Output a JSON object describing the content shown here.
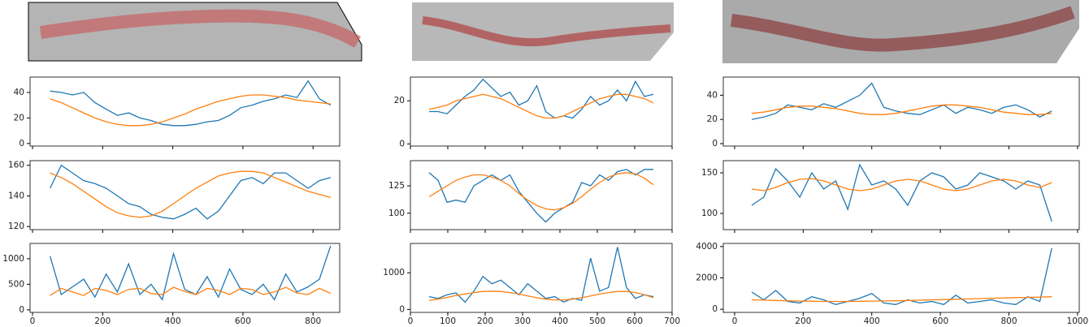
{
  "chart_data": [
    {
      "type": "line",
      "x": [
        50,
        82,
        114,
        146,
        178,
        210,
        242,
        274,
        306,
        338,
        370,
        402,
        434,
        466,
        498,
        530,
        562,
        594,
        626,
        658,
        690,
        722,
        754,
        786,
        818,
        850
      ],
      "xlim": [
        -7,
        876
      ],
      "xticks": [
        0,
        200,
        400,
        600,
        800
      ],
      "ylim": [
        -2,
        52
      ],
      "yticks": [
        0,
        20,
        40
      ],
      "series": [
        {
          "color": "#1f77b4",
          "values": [
            41,
            40,
            38,
            40,
            32,
            27,
            22,
            24,
            20,
            18,
            15,
            14,
            14,
            15,
            17,
            18,
            22,
            28,
            30,
            33,
            35,
            38,
            36,
            49,
            35,
            30
          ]
        },
        {
          "color": "#ff7f0e",
          "values": [
            35,
            32,
            28,
            24,
            20,
            17,
            15,
            14,
            14,
            15,
            17,
            20,
            23,
            27,
            30,
            33,
            35,
            37,
            38,
            38,
            37,
            36,
            34,
            33,
            32,
            31
          ]
        }
      ]
    },
    {
      "type": "line",
      "x": [
        50,
        82,
        114,
        146,
        178,
        210,
        242,
        274,
        306,
        338,
        370,
        402,
        434,
        466,
        498,
        530,
        562,
        594,
        626,
        658,
        690,
        722,
        754,
        786,
        818,
        850
      ],
      "xlim": [
        -7,
        876
      ],
      "xticks": [
        0,
        200,
        400,
        600,
        800
      ],
      "ylim": [
        118,
        163
      ],
      "yticks": [
        120,
        140,
        160
      ],
      "series": [
        {
          "color": "#1f77b4",
          "values": [
            145,
            160,
            155,
            150,
            148,
            145,
            140,
            135,
            133,
            128,
            126,
            125,
            128,
            132,
            125,
            130,
            140,
            150,
            152,
            148,
            155,
            155,
            150,
            145,
            150,
            152
          ]
        },
        {
          "color": "#ff7f0e",
          "values": [
            155,
            152,
            148,
            143,
            138,
            133,
            129,
            127,
            126,
            127,
            130,
            135,
            140,
            145,
            149,
            153,
            155,
            156,
            156,
            155,
            152,
            149,
            146,
            143,
            141,
            139
          ]
        }
      ]
    },
    {
      "type": "line",
      "x": [
        50,
        82,
        114,
        146,
        178,
        210,
        242,
        274,
        306,
        338,
        370,
        402,
        434,
        466,
        498,
        530,
        562,
        594,
        626,
        658,
        690,
        722,
        754,
        786,
        818,
        850
      ],
      "xlim": [
        -7,
        876
      ],
      "xticks": [
        0,
        200,
        400,
        600,
        800
      ],
      "ylim": [
        -50,
        1300
      ],
      "yticks": [
        0,
        500,
        1000
      ],
      "series": [
        {
          "color": "#1f77b4",
          "values": [
            1050,
            300,
            450,
            600,
            250,
            700,
            350,
            900,
            300,
            500,
            200,
            1100,
            400,
            300,
            650,
            250,
            800,
            400,
            300,
            500,
            200,
            700,
            350,
            450,
            600,
            1250
          ]
        },
        {
          "color": "#ff7f0e",
          "values": [
            280,
            420,
            350,
            280,
            420,
            380,
            300,
            400,
            420,
            320,
            300,
            440,
            360,
            300,
            420,
            380,
            300,
            420,
            400,
            300,
            350,
            440,
            330,
            300,
            420,
            320
          ]
        }
      ]
    },
    {
      "type": "line",
      "x": [
        50,
        74,
        98,
        122,
        146,
        170,
        194,
        218,
        242,
        266,
        290,
        314,
        338,
        362,
        386,
        410,
        434,
        458,
        482,
        506,
        530,
        554,
        578,
        602,
        626,
        650
      ],
      "xlim": [
        0,
        700
      ],
      "xticks": [
        0,
        100,
        200,
        300,
        400,
        500,
        600,
        700
      ],
      "ylim": [
        -1,
        31
      ],
      "yticks": [
        0,
        20
      ],
      "series": [
        {
          "color": "#1f77b4",
          "values": [
            15,
            15,
            14,
            18,
            22,
            25,
            30,
            26,
            22,
            24,
            18,
            20,
            27,
            15,
            12,
            13,
            12,
            16,
            22,
            18,
            20,
            25,
            20,
            29,
            22,
            23
          ]
        },
        {
          "color": "#ff7f0e",
          "values": [
            16,
            17,
            18,
            20,
            21,
            22,
            23,
            22,
            21,
            19,
            17,
            15,
            13,
            12,
            12,
            13,
            15,
            17,
            19,
            21,
            22,
            23,
            23,
            22,
            21,
            19
          ]
        }
      ]
    },
    {
      "type": "line",
      "x": [
        50,
        74,
        98,
        122,
        146,
        170,
        194,
        218,
        242,
        266,
        290,
        314,
        338,
        362,
        386,
        410,
        434,
        458,
        482,
        506,
        530,
        554,
        578,
        602,
        626,
        650
      ],
      "xlim": [
        0,
        700
      ],
      "xticks": [
        0,
        100,
        200,
        300,
        400,
        500,
        600,
        700
      ],
      "ylim": [
        85,
        148
      ],
      "yticks": [
        100,
        125
      ],
      "series": [
        {
          "color": "#1f77b4",
          "values": [
            137,
            130,
            110,
            112,
            110,
            125,
            130,
            135,
            130,
            135,
            120,
            110,
            100,
            92,
            100,
            105,
            110,
            128,
            125,
            135,
            130,
            138,
            140,
            135,
            140,
            140
          ]
        },
        {
          "color": "#ff7f0e",
          "values": [
            115,
            120,
            125,
            130,
            133,
            135,
            135,
            133,
            130,
            125,
            118,
            112,
            107,
            104,
            103,
            105,
            109,
            115,
            122,
            128,
            133,
            136,
            137,
            136,
            132,
            126
          ]
        }
      ]
    },
    {
      "type": "line",
      "x": [
        50,
        74,
        98,
        122,
        146,
        170,
        194,
        218,
        242,
        266,
        290,
        314,
        338,
        362,
        386,
        410,
        434,
        458,
        482,
        506,
        530,
        554,
        578,
        602,
        626,
        650
      ],
      "xlim": [
        0,
        700
      ],
      "xticks": [
        0,
        100,
        200,
        300,
        400,
        500,
        600,
        700
      ],
      "ylim": [
        -80,
        1800
      ],
      "yticks": [
        0,
        1000
      ],
      "series": [
        {
          "color": "#1f77b4",
          "values": [
            350,
            300,
            400,
            450,
            200,
            500,
            900,
            700,
            800,
            600,
            400,
            700,
            500,
            300,
            350,
            200,
            300,
            250,
            1400,
            500,
            600,
            1700,
            600,
            300,
            400,
            350
          ]
        },
        {
          "color": "#ff7f0e",
          "values": [
            250,
            280,
            330,
            380,
            420,
            460,
            490,
            500,
            490,
            460,
            420,
            370,
            320,
            280,
            260,
            260,
            280,
            320,
            370,
            420,
            460,
            490,
            490,
            460,
            400,
            320
          ]
        }
      ]
    },
    {
      "type": "line",
      "x": [
        50,
        85,
        120,
        155,
        190,
        225,
        260,
        295,
        330,
        365,
        400,
        435,
        470,
        505,
        540,
        575,
        610,
        645,
        680,
        715,
        750,
        785,
        820,
        855,
        890,
        925
      ],
      "xlim": [
        -33,
        1005
      ],
      "xticks": [
        0,
        200,
        400,
        600,
        800,
        1000
      ],
      "ylim": [
        -2,
        55
      ],
      "yticks": [
        0,
        20,
        40
      ],
      "series": [
        {
          "color": "#1f77b4",
          "values": [
            20,
            22,
            25,
            32,
            30,
            28,
            33,
            30,
            35,
            40,
            50,
            30,
            27,
            25,
            24,
            28,
            32,
            25,
            30,
            28,
            25,
            30,
            32,
            28,
            22,
            27
          ]
        },
        {
          "color": "#ff7f0e",
          "values": [
            25,
            26,
            28,
            30,
            31,
            31,
            30,
            29,
            27,
            25,
            24,
            24,
            25,
            27,
            29,
            31,
            32,
            32,
            31,
            30,
            28,
            26,
            25,
            24,
            24,
            25
          ]
        }
      ]
    },
    {
      "type": "line",
      "x": [
        50,
        85,
        120,
        155,
        190,
        225,
        260,
        295,
        330,
        365,
        400,
        435,
        470,
        505,
        540,
        575,
        610,
        645,
        680,
        715,
        750,
        785,
        820,
        855,
        890,
        925
      ],
      "xlim": [
        -33,
        1005
      ],
      "xticks": [
        0,
        200,
        400,
        600,
        800,
        1000
      ],
      "ylim": [
        80,
        165
      ],
      "yticks": [
        100,
        150
      ],
      "series": [
        {
          "color": "#1f77b4",
          "values": [
            110,
            120,
            155,
            140,
            120,
            150,
            130,
            140,
            105,
            160,
            135,
            140,
            130,
            110,
            140,
            150,
            145,
            130,
            135,
            150,
            145,
            140,
            130,
            140,
            135,
            90
          ]
        },
        {
          "color": "#ff7f0e",
          "values": [
            130,
            128,
            132,
            138,
            142,
            143,
            140,
            135,
            130,
            128,
            130,
            135,
            140,
            142,
            140,
            135,
            130,
            128,
            130,
            135,
            140,
            142,
            140,
            135,
            132,
            138
          ]
        }
      ]
    },
    {
      "type": "line",
      "x": [
        50,
        85,
        120,
        155,
        190,
        225,
        260,
        295,
        330,
        365,
        400,
        435,
        470,
        505,
        540,
        575,
        610,
        645,
        680,
        715,
        750,
        785,
        820,
        855,
        890,
        925
      ],
      "xlim": [
        -33,
        1005
      ],
      "xticks": [
        0,
        200,
        400,
        600,
        800,
        1000
      ],
      "ylim": [
        -200,
        4200
      ],
      "yticks": [
        0,
        2000,
        4000
      ],
      "series": [
        {
          "color": "#1f77b4",
          "values": [
            1100,
            600,
            1200,
            500,
            400,
            800,
            600,
            300,
            500,
            700,
            1000,
            400,
            300,
            600,
            400,
            500,
            300,
            900,
            400,
            500,
            600,
            400,
            300,
            800,
            500,
            3900
          ]
        },
        {
          "color": "#ff7f0e",
          "values": [
            600,
            580,
            560,
            540,
            520,
            510,
            500,
            500,
            500,
            510,
            520,
            530,
            540,
            560,
            580,
            600,
            620,
            640,
            660,
            680,
            700,
            720,
            740,
            760,
            780,
            800
          ]
        }
      ]
    }
  ]
}
